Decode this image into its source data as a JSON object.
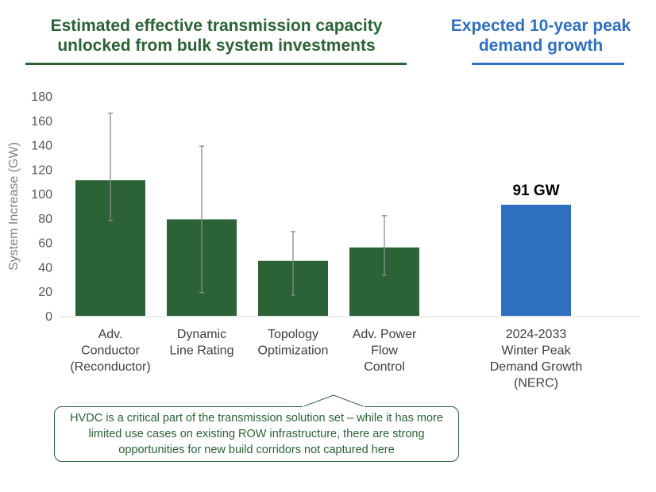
{
  "titles": {
    "left": "Estimated effective transmission capacity unlocked from bulk system investments",
    "right": "Expected 10-year peak demand growth"
  },
  "note": "HVDC is a critical part of the transmission solution set – while it has more limited use cases on existing ROW infrastructure, there are strong opportunities for new build corridors not captured here",
  "chart_data": {
    "type": "bar",
    "ylabel": "System Increase (GW)",
    "ylim": [
      0,
      180
    ],
    "yticks": [
      0,
      20,
      40,
      60,
      80,
      100,
      120,
      140,
      160,
      180
    ],
    "grid": false,
    "categories": [
      [
        "Adv.",
        "Conductor",
        "(Reconductor)"
      ],
      [
        "Dynamic",
        "Line Rating"
      ],
      [
        "Topology",
        "Optimization"
      ],
      [
        "Adv. Power",
        "Flow",
        "Control"
      ],
      [
        "2024-2033",
        "Winter Peak",
        "Demand Growth",
        "(NERC)"
      ]
    ],
    "values": [
      111,
      79,
      45,
      56,
      91
    ],
    "error_low": [
      78,
      19,
      17,
      33,
      null
    ],
    "error_high": [
      166,
      139,
      69,
      82,
      null
    ],
    "colors": [
      "#2b6236",
      "#2b6236",
      "#2b6236",
      "#2b6236",
      "#2e6fc0"
    ],
    "data_labels": [
      null,
      null,
      null,
      null,
      "91 GW"
    ]
  }
}
